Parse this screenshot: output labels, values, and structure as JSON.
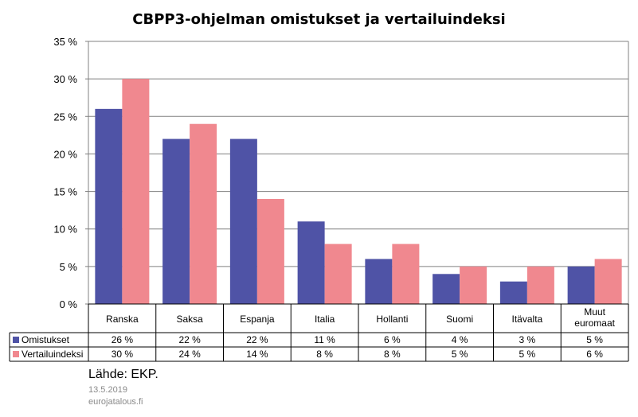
{
  "chart_data": {
    "type": "bar",
    "title": "CBPP3-ohjelman omistukset ja vertailuindeksi",
    "categories": [
      "Ranska",
      "Saksa",
      "Espanja",
      "Italia",
      "Hollanti",
      "Suomi",
      "Itävalta",
      "Muut euromaat"
    ],
    "category_lines": [
      [
        "Ranska"
      ],
      [
        "Saksa"
      ],
      [
        "Espanja"
      ],
      [
        "Italia"
      ],
      [
        "Hollanti"
      ],
      [
        "Suomi"
      ],
      [
        "Itävalta"
      ],
      [
        "Muut",
        "euromaat"
      ]
    ],
    "series": [
      {
        "name": "Omistukset",
        "color": "#4f53a6",
        "values": [
          26,
          22,
          22,
          11,
          6,
          4,
          3,
          5
        ],
        "labels": [
          "26 %",
          "22 %",
          "22 %",
          "11 %",
          "6 %",
          "4 %",
          "3 %",
          "5 %"
        ]
      },
      {
        "name": "Vertailuindeksi",
        "color": "#f0888f",
        "values": [
          30,
          24,
          14,
          8,
          8,
          5,
          5,
          6
        ],
        "labels": [
          "30 %",
          "24 %",
          "14 %",
          "8 %",
          "8 %",
          "5 %",
          "5 %",
          "6 %"
        ]
      }
    ],
    "ylim": [
      0,
      35
    ],
    "yticks": [
      0,
      5,
      10,
      15,
      20,
      25,
      30,
      35
    ],
    "ytick_labels": [
      "0 %",
      "5 %",
      "10 %",
      "15 %",
      "20 %",
      "25 %",
      "30 %",
      "35 %"
    ],
    "xlabel": "",
    "ylabel": "",
    "grid": true,
    "legend": "data-table-left"
  },
  "footer": {
    "source": "Lähde: EKP.",
    "date": "13.5.2019",
    "site": "eurojatalous.fi"
  }
}
